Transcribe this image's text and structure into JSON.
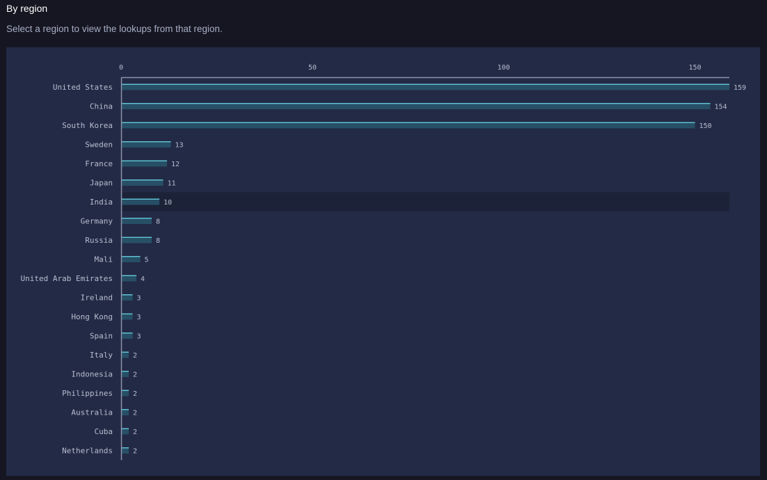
{
  "header": {
    "title": "By region",
    "subtitle": "Select a region to view the lookups from that region."
  },
  "colors": {
    "page_background": "#161622",
    "panel_background": "#232a45",
    "bar_fill": "#274f66",
    "bar_edge": "#5fc1d1",
    "hover_row": "#1c2338",
    "axis": "#8e94aa",
    "text": "#b7bdd0"
  },
  "highlighted_row": "India",
  "chart_data": {
    "type": "bar",
    "orientation": "horizontal",
    "categories": [
      "United States",
      "China",
      "South Korea",
      "Sweden",
      "France",
      "Japan",
      "India",
      "Germany",
      "Russia",
      "Mali",
      "United Arab Emirates",
      "Ireland",
      "Hong Kong",
      "Spain",
      "Italy",
      "Indonesia",
      "Philippines",
      "Australia",
      "Cuba",
      "Netherlands"
    ],
    "values": [
      159,
      154,
      150,
      13,
      12,
      11,
      10,
      8,
      8,
      5,
      4,
      3,
      3,
      3,
      2,
      2,
      2,
      2,
      2,
      2
    ],
    "x_ticks": [
      0,
      50,
      100,
      150
    ],
    "xlim": [
      0,
      159
    ],
    "axis_position": "top",
    "grid": false,
    "legend": "none",
    "data_labels": true
  }
}
